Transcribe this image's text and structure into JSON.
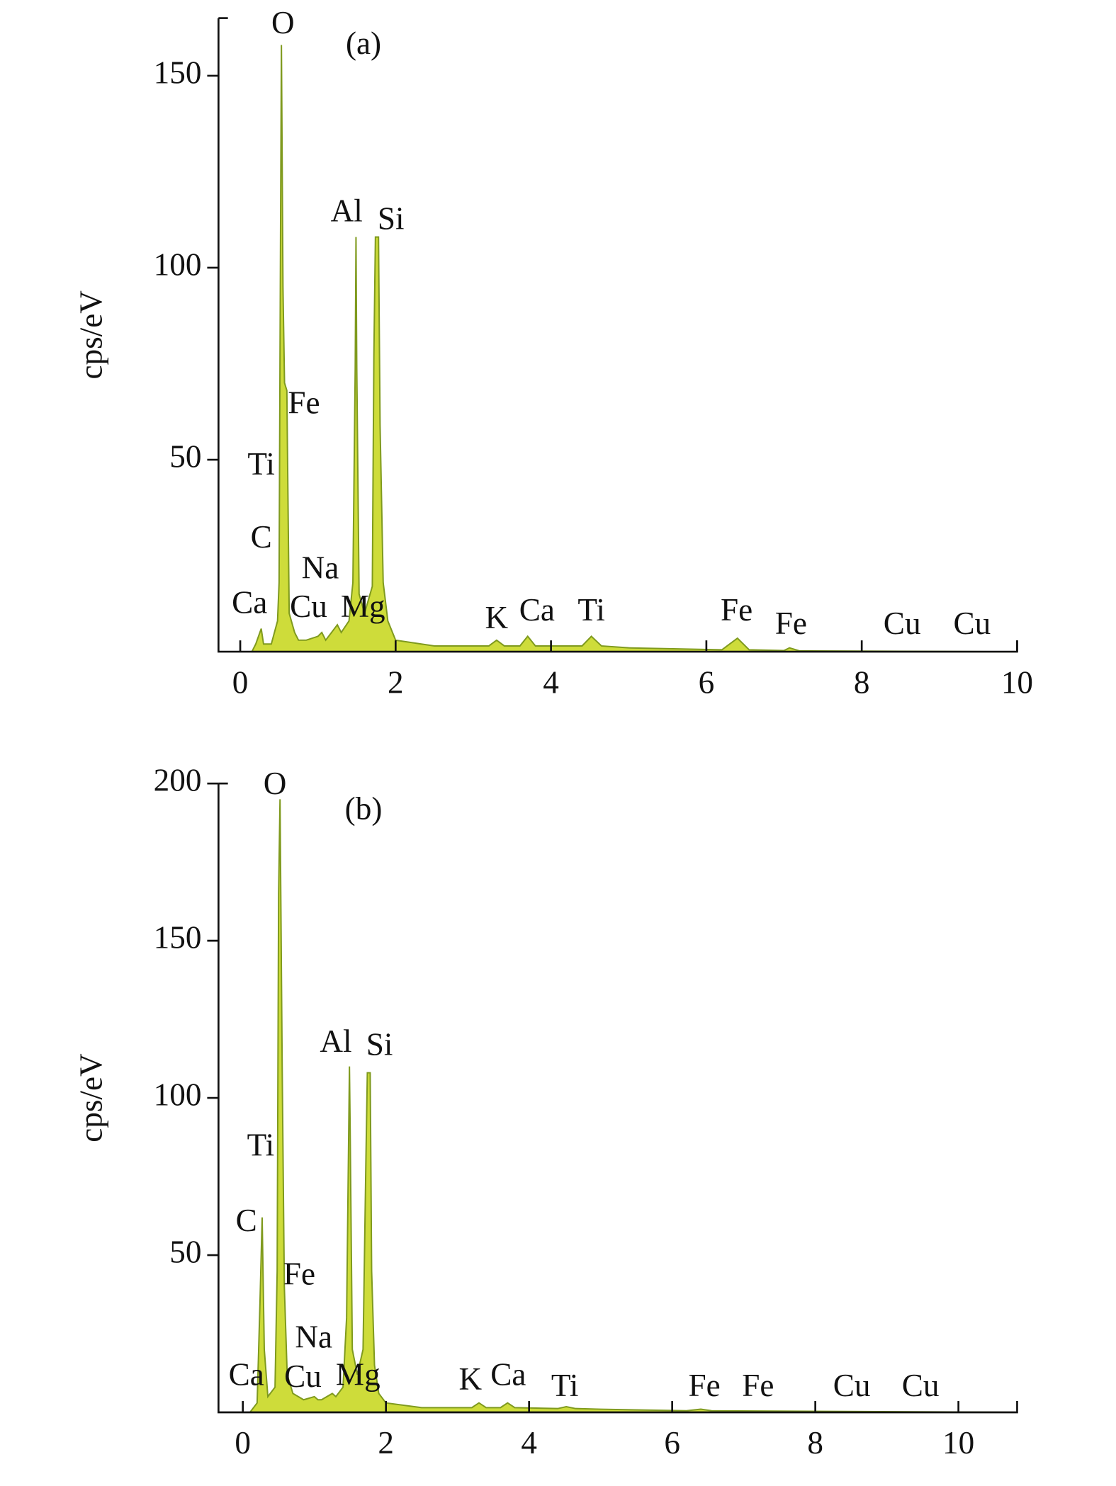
{
  "chart_data": [
    {
      "type": "area",
      "panel_label": "(a)",
      "y_label": "cps/eV",
      "color": "#cedc3a",
      "line_color": "#7f9a1e",
      "x": [
        0.15,
        0.2,
        0.27,
        0.3,
        0.4,
        0.48,
        0.5,
        0.52,
        0.53,
        0.55,
        0.57,
        0.6,
        0.63,
        0.7,
        0.75,
        0.85,
        1.0,
        1.05,
        1.1,
        1.25,
        1.3,
        1.4,
        1.45,
        1.48,
        1.49,
        1.5,
        1.53,
        1.6,
        1.7,
        1.72,
        1.74,
        1.78,
        1.8,
        1.84,
        1.9,
        2.0,
        2.5,
        3.2,
        3.3,
        3.4,
        3.6,
        3.7,
        3.8,
        4.4,
        4.52,
        4.65,
        5.0,
        6.2,
        6.4,
        6.55,
        7.0,
        7.07,
        7.2,
        10
      ],
      "y": [
        0,
        2,
        6,
        2,
        2,
        8,
        18,
        116,
        158,
        95,
        70,
        68,
        10,
        5,
        3,
        3,
        4,
        5,
        3,
        7,
        5,
        8,
        18,
        74,
        108,
        74,
        15,
        10,
        17,
        77,
        108,
        108,
        59,
        18,
        8,
        3,
        1.5,
        1.5,
        3,
        1.5,
        1.5,
        4,
        1.5,
        1.5,
        4,
        1.5,
        1,
        0.5,
        3.5,
        0.5,
        0.3,
        1,
        0.2,
        0
      ],
      "xlim": [
        -0.28,
        10
      ],
      "ylim": [
        0,
        165
      ],
      "xticks": [
        0,
        2,
        4,
        6,
        8,
        10
      ],
      "yticks": [
        50,
        100,
        150
      ],
      "annotations": [
        {
          "text": "O",
          "x": 0.55,
          "y": 163
        },
        {
          "text": "Al",
          "x": 1.37,
          "y": 114
        },
        {
          "text": "Si",
          "x": 1.94,
          "y": 112
        },
        {
          "text": "Fe",
          "x": 0.82,
          "y": 64
        },
        {
          "text": "Ti",
          "x": 0.27,
          "y": 48
        },
        {
          "text": "C",
          "x": 0.27,
          "y": 29
        },
        {
          "text": "Na",
          "x": 1.03,
          "y": 21
        },
        {
          "text": "Ca",
          "x": 0.12,
          "y": 12
        },
        {
          "text": "Cu",
          "x": 0.88,
          "y": 11
        },
        {
          "text": "Mg",
          "x": 1.58,
          "y": 11
        },
        {
          "text": "K",
          "x": 3.3,
          "y": 8
        },
        {
          "text": "Ca",
          "x": 3.82,
          "y": 10
        },
        {
          "text": "Ti",
          "x": 4.52,
          "y": 10
        },
        {
          "text": "Fe",
          "x": 6.39,
          "y": 10
        },
        {
          "text": "Fe",
          "x": 7.09,
          "y": 6.5
        },
        {
          "text": "Cu",
          "x": 8.52,
          "y": 6.5
        },
        {
          "text": "Cu",
          "x": 9.42,
          "y": 6.5
        }
      ]
    },
    {
      "type": "area",
      "panel_label": "(b)",
      "y_label": "cps/eV",
      "color": "#cedc3a",
      "line_color": "#7f9a1e",
      "x": [
        0.1,
        0.2,
        0.24,
        0.27,
        0.3,
        0.35,
        0.45,
        0.48,
        0.5,
        0.52,
        0.55,
        0.58,
        0.62,
        0.7,
        0.85,
        1.0,
        1.05,
        1.1,
        1.25,
        1.3,
        1.4,
        1.45,
        1.48,
        1.49,
        1.5,
        1.53,
        1.6,
        1.68,
        1.72,
        1.74,
        1.78,
        1.8,
        1.84,
        1.9,
        2.0,
        2.5,
        3.2,
        3.3,
        3.4,
        3.6,
        3.7,
        3.8,
        4.4,
        4.52,
        4.65,
        5.0,
        6.2,
        6.4,
        6.55,
        10.82
      ],
      "y": [
        0,
        3,
        35,
        62,
        20,
        5,
        8,
        45,
        165,
        195,
        110,
        40,
        12,
        6,
        4,
        5,
        4,
        4,
        6,
        5,
        8,
        30,
        90,
        110,
        90,
        20,
        12,
        20,
        80,
        108,
        108,
        45,
        15,
        6,
        3,
        1.5,
        1.5,
        3,
        1.5,
        1.5,
        3,
        1.5,
        1.2,
        1.8,
        1.2,
        1,
        0.5,
        1,
        0.5,
        0
      ],
      "xlim": [
        -0.34,
        10.82
      ],
      "ylim": [
        0,
        200
      ],
      "xticks": [
        0,
        2,
        4,
        6,
        8,
        10
      ],
      "yticks": [
        50,
        100,
        150,
        200
      ],
      "annotations": [
        {
          "text": "O",
          "x": 0.45,
          "y": 199
        },
        {
          "text": "Al",
          "x": 1.3,
          "y": 117
        },
        {
          "text": "Si",
          "x": 1.91,
          "y": 116
        },
        {
          "text": "Ti",
          "x": 0.25,
          "y": 84
        },
        {
          "text": "C",
          "x": 0.05,
          "y": 60
        },
        {
          "text": "Fe",
          "x": 0.79,
          "y": 43
        },
        {
          "text": "Na",
          "x": 0.99,
          "y": 23
        },
        {
          "text": "Ca",
          "x": 0.05,
          "y": 11
        },
        {
          "text": "Cu",
          "x": 0.84,
          "y": 10.5
        },
        {
          "text": "Mg",
          "x": 1.61,
          "y": 11
        },
        {
          "text": "K",
          "x": 3.18,
          "y": 9.5
        },
        {
          "text": "Ca",
          "x": 3.71,
          "y": 11
        },
        {
          "text": "Ti",
          "x": 4.5,
          "y": 7.5
        },
        {
          "text": "Fe",
          "x": 6.45,
          "y": 7.5
        },
        {
          "text": "Fe",
          "x": 7.2,
          "y": 7.5
        },
        {
          "text": "Cu",
          "x": 8.51,
          "y": 7.5
        },
        {
          "text": "Cu",
          "x": 9.47,
          "y": 7.5
        }
      ]
    }
  ]
}
